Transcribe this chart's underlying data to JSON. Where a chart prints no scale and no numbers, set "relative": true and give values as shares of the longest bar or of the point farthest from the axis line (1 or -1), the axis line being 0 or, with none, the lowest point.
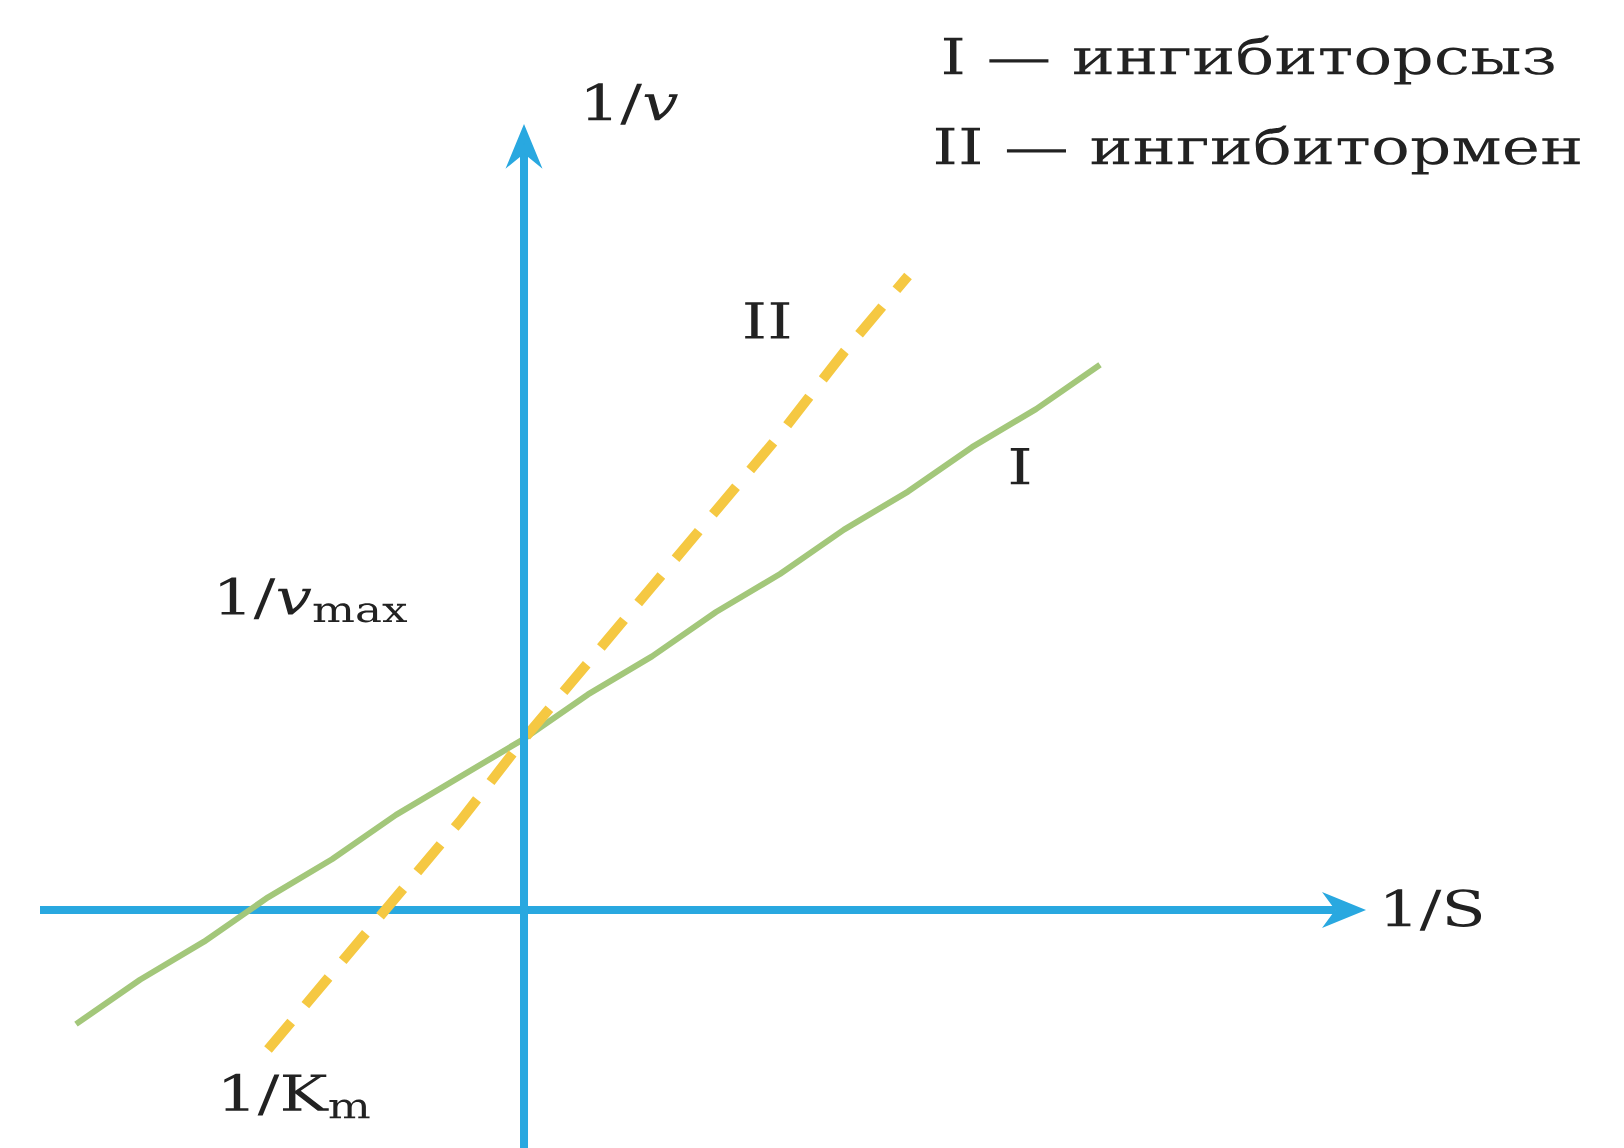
{
  "chart_data": {
    "type": "line",
    "relative": true,
    "ylabel": "1/*v*",
    "categories": [
      null,
      null,
      null,
      null,
      null,
      null,
      null,
      null,
      null,
      null,
      null,
      null,
      null,
      null,
      null,
      null,
      null
    ],
    "series": [
      {
        "name": "I",
        "color": "#a3c77a",
        "line_style": "solid",
        "values": [
          -0.18,
          -0.11,
          -0.05,
          0.02,
          0.08,
          0.15,
          0.21,
          0.27,
          0.34,
          0.4,
          0.47,
          0.53,
          0.6,
          0.66,
          0.73,
          0.79,
          0.86
        ]
      },
      {
        "name": "II",
        "color": "#f5c842",
        "line_style": "dashed",
        "values": [
          null,
          null,
          null,
          -0.22,
          -0.1,
          0.02,
          0.14,
          0.27,
          0.39,
          0.51,
          0.63,
          0.75,
          0.88,
          1.0,
          null,
          null,
          null
        ]
      }
    ],
    "ref_lines": [
      {
        "axis": "y",
        "value": 0,
        "color": "#29a8e0"
      }
    ],
    "annotations": [
      "I — ингибиторсыз",
      "II — ингибитормен",
      "1/*v*$_{max}$",
      "1/K$_{m}$",
      "1/S"
    ]
  }
}
